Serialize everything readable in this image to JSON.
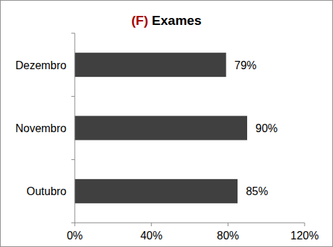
{
  "chart_data": {
    "type": "bar",
    "title": "(F) Exames",
    "orientation": "horizontal",
    "categories": [
      "Outubro",
      "Novembro",
      "Dezembro"
    ],
    "values": [
      85,
      90,
      79
    ],
    "value_labels": [
      "85%",
      "90%",
      "79%"
    ],
    "color": "#404040",
    "xlim": [
      0,
      120
    ],
    "xticks": [
      {
        "value": 0,
        "label": "0%"
      },
      {
        "value": 40,
        "label": "40%"
      },
      {
        "value": 80,
        "label": "80%"
      },
      {
        "value": 120,
        "label": "120%"
      }
    ],
    "grid": false,
    "data_labels": true
  }
}
